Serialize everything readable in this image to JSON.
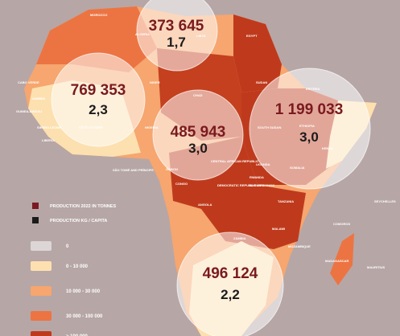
{
  "legend": {
    "production_label": "PRODUCTION 2022 IN TONNES",
    "per_capita_label": "PRODUCTION KG / CAPITA",
    "classes": [
      {
        "label": "0",
        "color": "#dcd6d6"
      },
      {
        "label": "0 - 10 000",
        "color": "#fde0b0"
      },
      {
        "label": "10 000 - 30 000",
        "color": "#f6a66e"
      },
      {
        "label": "30 000 - 100 000",
        "color": "#ec7442"
      },
      {
        "label": "> 100 000",
        "color": "#bf3a1c"
      }
    ]
  },
  "bubbles": [
    {
      "production": "373 645",
      "per_capita": "1,7"
    },
    {
      "production": "769 353",
      "per_capita": "2,3"
    },
    {
      "production": "485 943",
      "per_capita": "3,0"
    },
    {
      "production": "1 199 033",
      "per_capita": "3,0"
    },
    {
      "production": "496 124",
      "per_capita": "2,2"
    }
  ],
  "countries": [
    "MOROCCO",
    "ALGERIA",
    "LIBYA",
    "EGYPT",
    "CABO VERDE",
    "GAMBIA",
    "GUINEA-BISSAU",
    "SIERRA LEONE",
    "LIBERIA",
    "CÔTE D'IVOIRE",
    "NIGER",
    "CHAD",
    "SUDAN",
    "ERITREA",
    "ETHIOPIA",
    "SOUTH SUDAN",
    "SOMALIA",
    "KENYA",
    "UGANDA",
    "RWANDA",
    "BURUNDI",
    "TANZANIA",
    "CENTRAL AFRICAN REPUBLIC",
    "DEMOCRATIC REPUBLIC OF CONGO",
    "CONGO",
    "GABON",
    "SÃO TOMÉ AND PRÍNCIPE",
    "NIGERIA",
    "ANGOLA",
    "ZAMBIA",
    "MALAWI",
    "MOZAMBIQUE",
    "MADAGASCAR",
    "COMOROS",
    "SEYCHELLES",
    "MAURITIUS"
  ]
}
